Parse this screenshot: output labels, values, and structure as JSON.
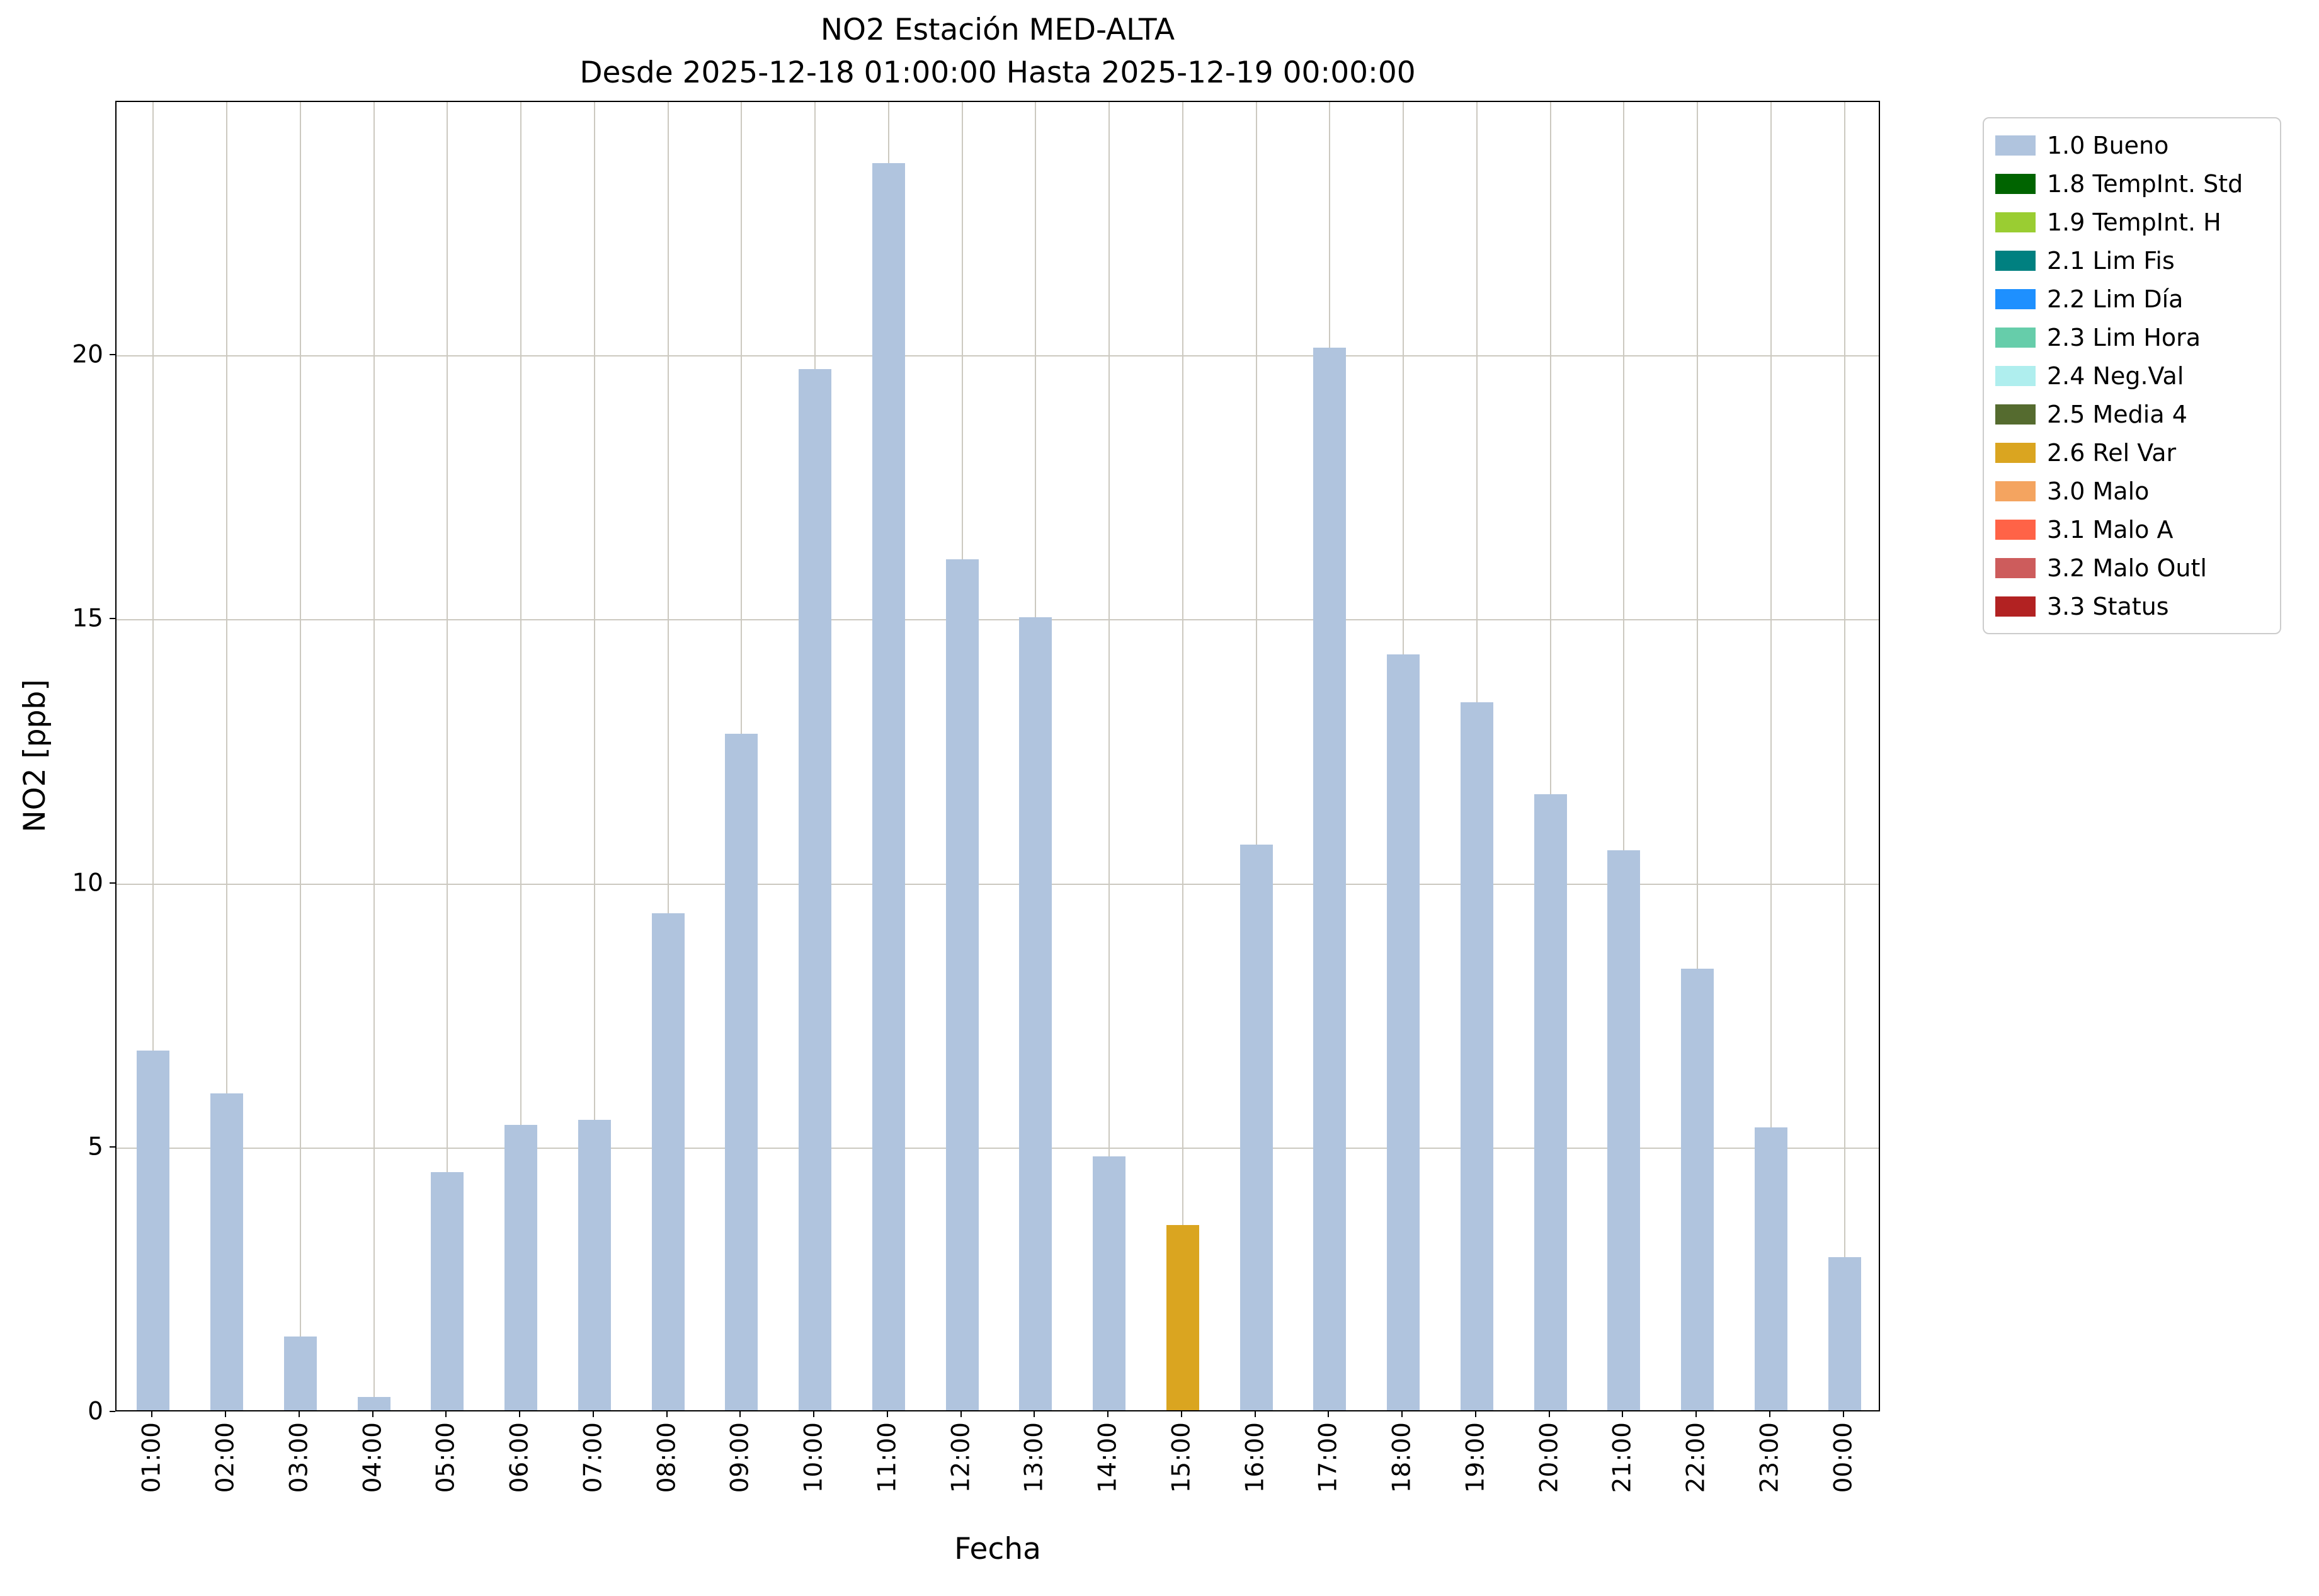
{
  "chart_data": {
    "type": "bar",
    "title": "NO2 Estación MED-ALTA",
    "subtitle": "Desde 2025-12-18 01:00:00 Hasta 2025-12-19 00:00:00",
    "xlabel": "Fecha",
    "ylabel": "NO2 [ppb]",
    "ylim": [
      0,
      24.8
    ],
    "yticks": [
      0,
      5,
      10,
      15,
      20
    ],
    "grid": true,
    "legend_position": "outside upper right",
    "categories": [
      "01:00",
      "02:00",
      "03:00",
      "04:00",
      "05:00",
      "06:00",
      "07:00",
      "08:00",
      "09:00",
      "10:00",
      "11:00",
      "12:00",
      "13:00",
      "14:00",
      "15:00",
      "16:00",
      "17:00",
      "18:00",
      "19:00",
      "20:00",
      "21:00",
      "22:00",
      "23:00",
      "00:00"
    ],
    "values": [
      6.8,
      6.0,
      1.4,
      0.25,
      4.5,
      5.4,
      5.5,
      9.4,
      12.8,
      19.7,
      23.6,
      16.1,
      15.0,
      4.8,
      3.5,
      10.7,
      20.1,
      14.3,
      13.4,
      11.65,
      10.6,
      8.35,
      5.35,
      2.9
    ],
    "flags": [
      "1.0 Bueno",
      "1.0 Bueno",
      "1.0 Bueno",
      "1.0 Bueno",
      "1.0 Bueno",
      "1.0 Bueno",
      "1.0 Bueno",
      "1.0 Bueno",
      "1.0 Bueno",
      "1.0 Bueno",
      "1.0 Bueno",
      "1.0 Bueno",
      "1.0 Bueno",
      "1.0 Bueno",
      "2.6 Rel Var",
      "1.0 Bueno",
      "1.0 Bueno",
      "1.0 Bueno",
      "1.0 Bueno",
      "1.0 Bueno",
      "1.0 Bueno",
      "1.0 Bueno",
      "1.0 Bueno",
      "1.0 Bueno"
    ],
    "legend": [
      {
        "label": "1.0 Bueno",
        "color": "#b0c4de"
      },
      {
        "label": "1.8 TempInt. Std",
        "color": "#006400"
      },
      {
        "label": "1.9 TempInt. H",
        "color": "#9acd32"
      },
      {
        "label": "2.1 Lim Fis",
        "color": "#008080"
      },
      {
        "label": "2.2 Lim Día",
        "color": "#1e90ff"
      },
      {
        "label": "2.3 Lim Hora",
        "color": "#66cdaa"
      },
      {
        "label": "2.4 Neg.Val",
        "color": "#afeeee"
      },
      {
        "label": "2.5 Media 4",
        "color": "#556b2f"
      },
      {
        "label": "2.6 Rel Var",
        "color": "#daa520"
      },
      {
        "label": "3.0 Malo",
        "color": "#f4a460"
      },
      {
        "label": "3.1 Malo A",
        "color": "#ff6347"
      },
      {
        "label": "3.2 Malo Outl",
        "color": "#cd5c5c"
      },
      {
        "label": "3.3 Status",
        "color": "#b22222"
      }
    ]
  }
}
